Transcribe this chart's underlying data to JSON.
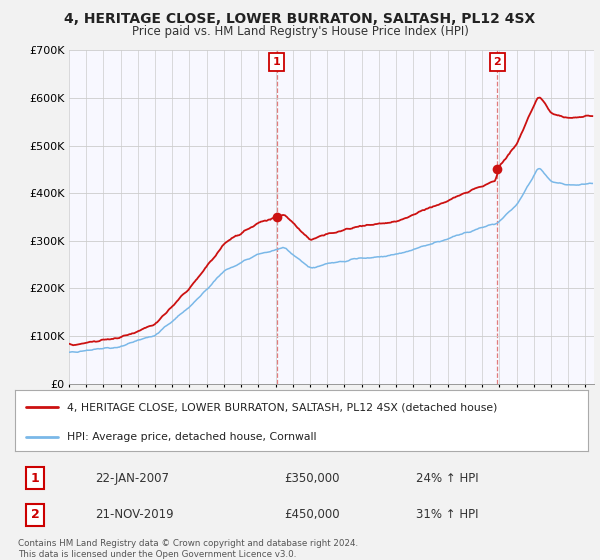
{
  "title": "4, HERITAGE CLOSE, LOWER BURRATON, SALTASH, PL12 4SX",
  "subtitle": "Price paid vs. HM Land Registry's House Price Index (HPI)",
  "ylim": [
    0,
    700000
  ],
  "xlim_start": 1995.0,
  "xlim_end": 2025.5,
  "sale1_date": 2007.06,
  "sale1_price": 350000,
  "sale2_date": 2019.89,
  "sale2_price": 450000,
  "hpi_color": "#7ab8e8",
  "price_color": "#cc1111",
  "dashed_color": "#dd6666",
  "background_color": "#f2f2f2",
  "plot_bg_color": "#f8f8ff",
  "legend_label1": "4, HERITAGE CLOSE, LOWER BURRATON, SALTASH, PL12 4SX (detached house)",
  "legend_label2": "HPI: Average price, detached house, Cornwall",
  "annotation1_date": "22-JAN-2007",
  "annotation1_price": "£350,000",
  "annotation1_hpi": "24% ↑ HPI",
  "annotation2_date": "21-NOV-2019",
  "annotation2_price": "£450,000",
  "annotation2_hpi": "31% ↑ HPI",
  "footnote": "Contains HM Land Registry data © Crown copyright and database right 2024.\nThis data is licensed under the Open Government Licence v3.0."
}
